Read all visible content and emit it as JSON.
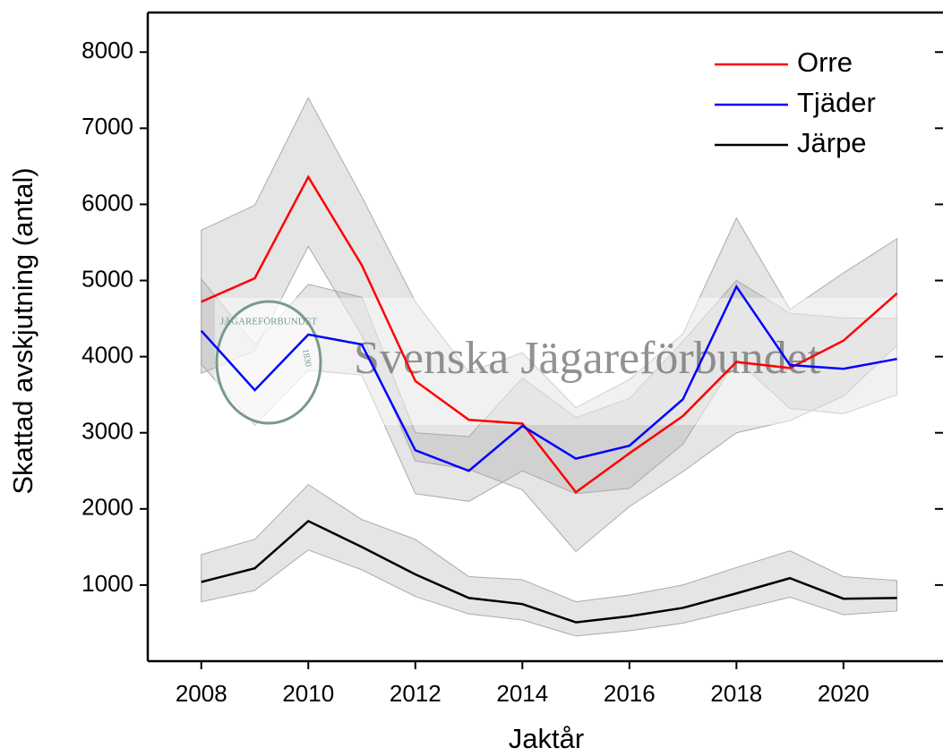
{
  "chart_data": {
    "type": "line",
    "x_label": "Jaktår",
    "y_label": "Skattad avskjutning (antal)",
    "x": [
      2008,
      2009,
      2010,
      2011,
      2012,
      2013,
      2014,
      2015,
      2016,
      2017,
      2018,
      2019,
      2020,
      2021
    ],
    "series": [
      {
        "name": "Orre",
        "color": "#ff0000",
        "values": [
          4720,
          5030,
          6360,
          5200,
          3680,
          3170,
          3120,
          2220,
          2730,
          3220,
          3930,
          3850,
          4210,
          4830
        ],
        "upper": [
          5660,
          5990,
          7400,
          6100,
          4720,
          3800,
          4050,
          3330,
          3700,
          4300,
          5820,
          4620,
          5100,
          5550
        ],
        "lower": [
          3780,
          4080,
          5450,
          4280,
          2630,
          2520,
          2250,
          1440,
          2030,
          2490,
          3000,
          3160,
          3480,
          4150
        ]
      },
      {
        "name": "Tjäder",
        "color": "#0000ff",
        "values": [
          4340,
          3560,
          4290,
          4160,
          2770,
          2500,
          3090,
          2660,
          2830,
          3440,
          4920,
          3890,
          3840,
          3970
        ],
        "upper": [
          5020,
          4160,
          4950,
          4780,
          3000,
          2950,
          3720,
          3200,
          3450,
          4200,
          5000,
          4570,
          4510,
          4500
        ],
        "lower": [
          3900,
          3100,
          3820,
          3760,
          2200,
          2100,
          2500,
          2200,
          2270,
          2850,
          3960,
          3320,
          3250,
          3500
        ]
      },
      {
        "name": "Järpe",
        "color": "#000000",
        "values": [
          1040,
          1220,
          1840,
          1500,
          1140,
          830,
          750,
          510,
          590,
          700,
          890,
          1090,
          820,
          830
        ],
        "upper": [
          1400,
          1600,
          2320,
          1860,
          1600,
          1110,
          1070,
          780,
          870,
          1000,
          1230,
          1450,
          1110,
          1060
        ],
        "lower": [
          780,
          930,
          1460,
          1200,
          850,
          620,
          540,
          330,
          400,
          500,
          670,
          840,
          610,
          660
        ]
      }
    ],
    "xlim": [
      2007,
      2021.86
    ],
    "ylim": [
      0,
      8520
    ],
    "xticks": [
      2008,
      2010,
      2012,
      2014,
      2016,
      2018,
      2020
    ],
    "yticks": [
      1000,
      2000,
      3000,
      4000,
      5000,
      6000,
      7000,
      8000
    ],
    "legend": "upper-right",
    "watermark": {
      "text": "Svenska Jägareförbundet",
      "logo_text": "JÄGAREFÖRBUNDET",
      "logo_year": "1830"
    }
  }
}
